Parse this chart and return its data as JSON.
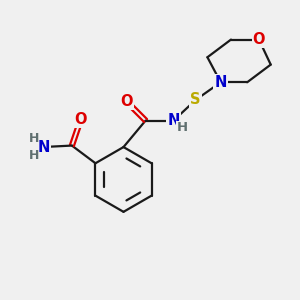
{
  "bg_color": "#f0f0f0",
  "bond_color": "#1a1a1a",
  "bond_width": 1.6,
  "dbo": 0.08,
  "atom_colors": {
    "C": "#1a1a1a",
    "N": "#0000cc",
    "O": "#dd0000",
    "S": "#bbaa00",
    "H": "#607070"
  },
  "font_size": 10.5
}
